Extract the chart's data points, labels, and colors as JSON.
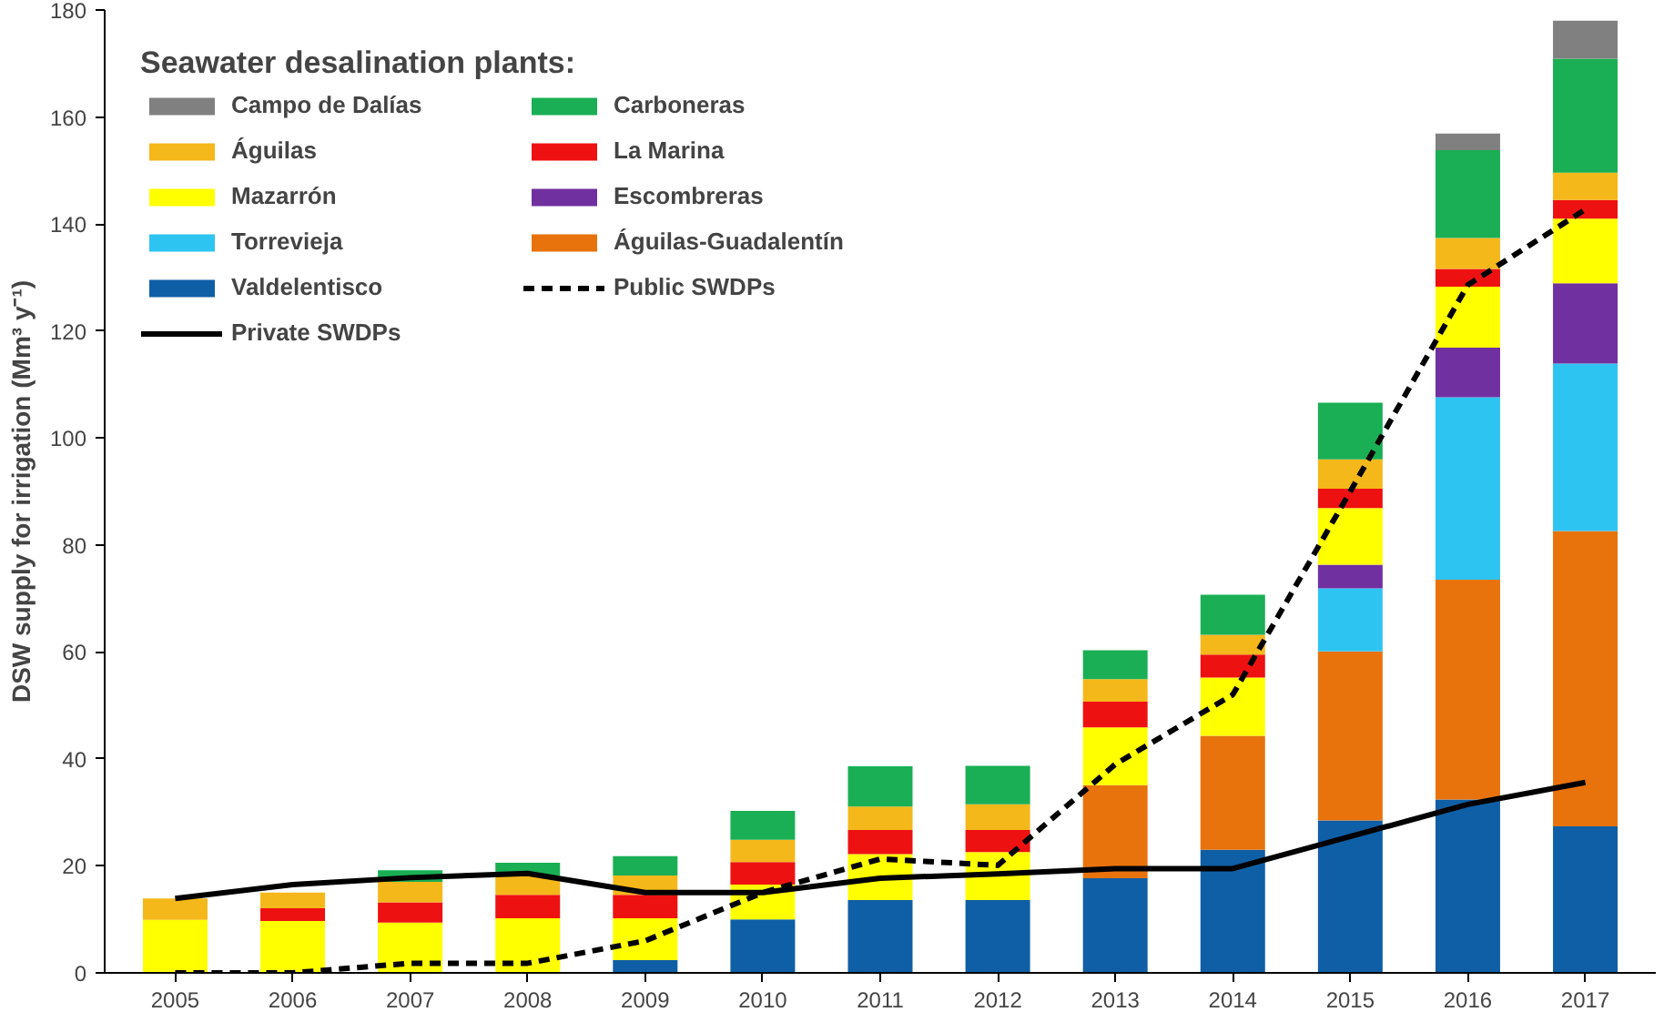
{
  "chart_data": {
    "type": "bar",
    "stacked": true,
    "ylabel": "DSW supply for irrigation (Mm³ y⁻¹)",
    "legend_title": "Seawater desalination plants:",
    "legend": "top left",
    "grid": false,
    "categories": [
      "2005",
      "2006",
      "2007",
      "2008",
      "2009",
      "2010",
      "2011",
      "2012",
      "2013",
      "2014",
      "2015",
      "2016",
      "2017"
    ],
    "ylim": [
      0,
      180
    ],
    "yticks": [
      0,
      20,
      40,
      60,
      80,
      100,
      120,
      140,
      160,
      180
    ],
    "series": [
      {
        "name": "Valdelentisco",
        "color": "#0f5fa6",
        "values": [
          null,
          null,
          null,
          null,
          2.4,
          10,
          13.6,
          13.6,
          17.7,
          23,
          28.5,
          32.4,
          27.4
        ]
      },
      {
        "name": "Águilas-Guadalentín",
        "color": "#e8730c",
        "values": [
          null,
          null,
          null,
          null,
          null,
          null,
          null,
          null,
          17.4,
          21.3,
          31.6,
          41.1,
          55.2
        ]
      },
      {
        "name": "Torrevieja",
        "color": "#2ec4f2",
        "values": [
          null,
          null,
          null,
          null,
          null,
          null,
          null,
          null,
          null,
          null,
          11.8,
          34.1,
          31.3
        ]
      },
      {
        "name": "Escombreras",
        "color": "#7030a0",
        "values": [
          null,
          null,
          null,
          null,
          null,
          null,
          null,
          null,
          null,
          null,
          4.4,
          9.3,
          15
        ]
      },
      {
        "name": "Mazarrón",
        "color": "#ffff00",
        "values": [
          9.9,
          9.7,
          9.4,
          10.2,
          7.8,
          6.5,
          8.6,
          9,
          10.8,
          10.9,
          10.6,
          11.4,
          12.1
        ]
      },
      {
        "name": "La Marina",
        "color": "#ee1111",
        "values": [
          null,
          2.4,
          3.8,
          4.4,
          4.4,
          4.2,
          4.5,
          4.1,
          4.8,
          4.3,
          3.6,
          3.3,
          3.5
        ]
      },
      {
        "name": "Águilas",
        "color": "#f5b81a",
        "values": [
          4,
          2.9,
          3.8,
          3.6,
          3.6,
          4.2,
          4.4,
          4.8,
          4.2,
          3.7,
          5.5,
          5.8,
          5.1
        ]
      },
      {
        "name": "Carboneras",
        "color": "#1aaf54",
        "values": [
          null,
          null,
          2.2,
          2.4,
          3.6,
          5.4,
          7.5,
          7.2,
          5.4,
          7.5,
          10.6,
          16.4,
          21.3
        ]
      },
      {
        "name": "Campo de Dalías",
        "color": "#808080",
        "values": [
          null,
          null,
          null,
          null,
          null,
          null,
          null,
          null,
          null,
          null,
          null,
          3.1,
          7.1
        ]
      },
      {
        "name": "Public SWDPs",
        "type": "line",
        "line_style": "dashed",
        "color": "#000000",
        "values": [
          0,
          0,
          1.8,
          1.8,
          6,
          15,
          21.3,
          20.1,
          39,
          52,
          90,
          128.6,
          142.7
        ]
      },
      {
        "name": "Private SWDPs",
        "type": "line",
        "line_style": "solid",
        "color": "#000000",
        "values": [
          13.9,
          16.5,
          17.8,
          18.6,
          15,
          15,
          17.7,
          18.5,
          19.5,
          19.5,
          25.5,
          31.5,
          35.6
        ]
      }
    ]
  }
}
